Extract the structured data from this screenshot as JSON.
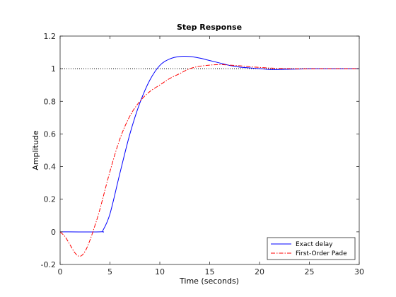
{
  "chart_data": {
    "type": "line",
    "title": "Step Response",
    "xlabel": "Time (seconds)",
    "ylabel": "Amplitude",
    "xlim": [
      0,
      30
    ],
    "ylim": [
      -0.2,
      1.2
    ],
    "xticks": [
      0,
      5,
      10,
      15,
      20,
      25,
      30
    ],
    "yticks": [
      -0.2,
      0,
      0.2,
      0.4,
      0.6,
      0.8,
      1,
      1.2
    ],
    "xtick_labels": [
      "0",
      "5",
      "10",
      "15",
      "20",
      "25",
      "30"
    ],
    "ytick_labels": [
      "-0.2",
      "0",
      "0.2",
      "0.4",
      "0.6",
      "0.8",
      "1",
      "1.2"
    ],
    "grid": false,
    "legend_position": "bottom-right",
    "reference_line": {
      "y": 1,
      "style": "dotted",
      "color": "#000000"
    },
    "series": [
      {
        "name": "Exact delay",
        "color": "#0000ff",
        "style": "solid",
        "x": [
          0,
          4,
          4.3,
          5,
          6,
          7,
          8,
          9,
          10,
          11,
          12,
          13,
          14,
          15,
          16,
          17,
          18,
          19,
          20,
          21,
          22,
          23,
          24,
          25,
          26,
          27,
          28,
          29,
          30
        ],
        "y": [
          0,
          0,
          0.01,
          0.11,
          0.36,
          0.6,
          0.79,
          0.93,
          1.02,
          1.06,
          1.075,
          1.075,
          1.065,
          1.05,
          1.035,
          1.02,
          1.01,
          1.005,
          1.0,
          0.995,
          0.995,
          0.997,
          0.998,
          1.0,
          1.0,
          1.0,
          1.0,
          1.0,
          1.0
        ]
      },
      {
        "name": "First-Order Pade",
        "color": "#ff0000",
        "style": "dashdot",
        "x": [
          0,
          0.5,
          1,
          1.5,
          2,
          2.5,
          3,
          3.5,
          4,
          5,
          6,
          7,
          8,
          9,
          10,
          11,
          12,
          13,
          14,
          15,
          16,
          17,
          18,
          19,
          20,
          21,
          22,
          23,
          24,
          25,
          26,
          27,
          28,
          29,
          30
        ],
        "y": [
          0,
          -0.03,
          -0.08,
          -0.13,
          -0.15,
          -0.12,
          -0.05,
          0.04,
          0.14,
          0.37,
          0.57,
          0.71,
          0.8,
          0.86,
          0.9,
          0.94,
          0.97,
          1.0,
          1.015,
          1.022,
          1.025,
          1.022,
          1.018,
          1.012,
          1.008,
          1.004,
          1.002,
          1.0,
          0.999,
          0.999,
          1.0,
          1.0,
          1.0,
          1.0,
          1.0
        ]
      }
    ]
  }
}
